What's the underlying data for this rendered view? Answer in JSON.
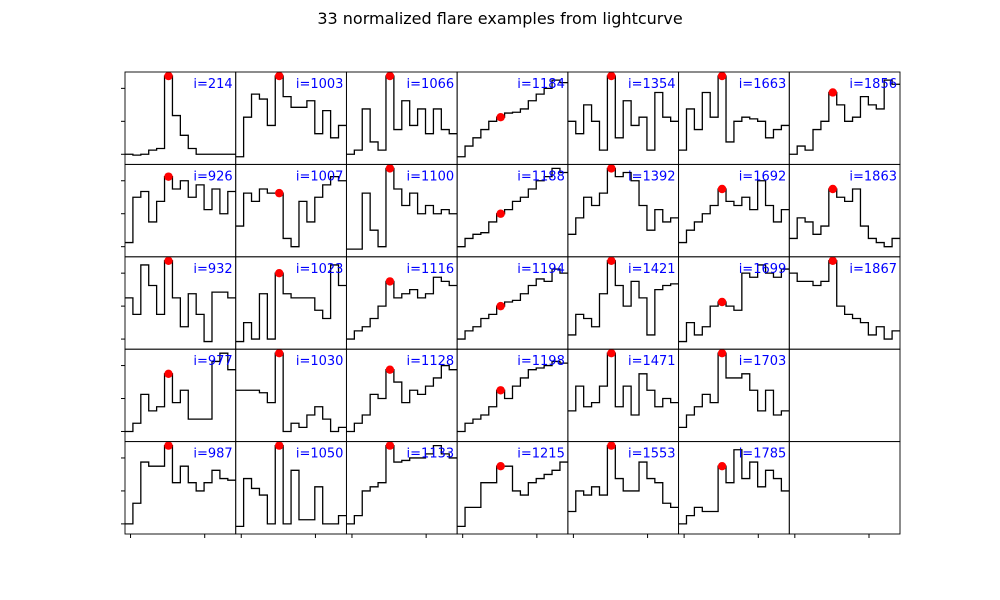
{
  "figure": {
    "title": "33 normalized flare examples from lightcurve",
    "grid": {
      "rows": 5,
      "cols": 7
    },
    "colors": {
      "line": "#000000",
      "marker": "#ff0000",
      "label": "#0000ff"
    }
  },
  "chart_data": {
    "type": "line",
    "drawstyle": "steps-mid",
    "xlim": [
      0,
      14
    ],
    "ylim": [
      0,
      1
    ],
    "grid": false,
    "legend": false,
    "panels": [
      {
        "label": "i=214",
        "peak_index": 5,
        "y": [
          0.05,
          0.04,
          0.05,
          0.1,
          0.12,
          1.0,
          0.52,
          0.28,
          0.12,
          0.05,
          0.05,
          0.05,
          0.05,
          0.05
        ]
      },
      {
        "label": "i=926",
        "peak_index": 5,
        "y": [
          0.1,
          0.65,
          0.72,
          0.35,
          0.6,
          0.9,
          0.75,
          0.85,
          0.65,
          0.8,
          0.5,
          0.75,
          0.45,
          0.72
        ]
      },
      {
        "label": "i=932",
        "peak_index": 5,
        "y": [
          0.55,
          0.35,
          0.95,
          0.7,
          0.35,
          1.0,
          0.55,
          0.2,
          0.6,
          0.35,
          0.02,
          0.62,
          0.62,
          0.55
        ]
      },
      {
        "label": "i=977",
        "peak_index": 5,
        "y": [
          0.05,
          0.15,
          0.5,
          0.3,
          0.35,
          0.75,
          0.4,
          0.55,
          0.2,
          0.2,
          0.2,
          0.9,
          1.0,
          0.8
        ]
      },
      {
        "label": "i=987",
        "peak_index": 5,
        "y": [
          0.05,
          0.3,
          0.8,
          0.75,
          0.75,
          1.0,
          0.55,
          0.75,
          0.55,
          0.45,
          0.55,
          0.7,
          0.6,
          0.58
        ]
      },
      {
        "label": "i=1003",
        "peak_index": 5,
        "y": [
          0.02,
          0.5,
          0.78,
          0.72,
          0.4,
          1.0,
          0.75,
          0.62,
          0.62,
          0.7,
          0.3,
          0.58,
          0.25,
          0.4
        ]
      },
      {
        "label": "i=1007",
        "peak_index": 5,
        "y": [
          0.3,
          0.7,
          0.6,
          0.75,
          0.7,
          0.7,
          0.15,
          0.05,
          0.6,
          0.35,
          0.65,
          0.8,
          0.9,
          0.85
        ]
      },
      {
        "label": "i=1023",
        "peak_index": 5,
        "y": [
          0.02,
          0.25,
          0.05,
          0.6,
          0.05,
          0.85,
          0.6,
          0.55,
          0.55,
          0.55,
          0.4,
          0.3,
          0.95,
          0.7
        ]
      },
      {
        "label": "i=1030",
        "peak_index": 5,
        "y": [
          0.55,
          0.55,
          0.55,
          0.52,
          0.4,
          1.0,
          0.05,
          0.15,
          0.1,
          0.25,
          0.35,
          0.2,
          0.05,
          0.1
        ]
      },
      {
        "label": "i=1050",
        "peak_index": 5,
        "y": [
          0.02,
          0.6,
          0.48,
          0.4,
          0.05,
          1.0,
          0.05,
          0.7,
          0.1,
          0.1,
          0.5,
          0.05,
          0.05,
          0.15
        ]
      },
      {
        "label": "i=1066",
        "peak_index": 5,
        "y": [
          0.05,
          0.1,
          0.6,
          0.2,
          0.1,
          1.0,
          0.35,
          0.7,
          0.4,
          0.6,
          0.3,
          0.6,
          0.35,
          0.3
        ]
      },
      {
        "label": "i=1100",
        "peak_index": 5,
        "y": [
          0.02,
          0.02,
          0.7,
          0.25,
          0.05,
          1.0,
          0.75,
          0.55,
          0.7,
          0.45,
          0.55,
          0.45,
          0.5,
          0.45
        ]
      },
      {
        "label": "i=1116",
        "peak_index": 5,
        "y": [
          0.05,
          0.15,
          0.2,
          0.3,
          0.45,
          0.75,
          0.55,
          0.6,
          0.65,
          0.55,
          0.6,
          0.8,
          0.75,
          0.7
        ]
      },
      {
        "label": "i=1128",
        "peak_index": 5,
        "y": [
          0.05,
          0.15,
          0.25,
          0.5,
          0.45,
          0.8,
          0.65,
          0.4,
          0.55,
          0.5,
          0.6,
          0.7,
          0.85,
          0.8
        ]
      },
      {
        "label": "i=1133",
        "peak_index": 5,
        "y": [
          0.05,
          0.15,
          0.45,
          0.5,
          0.55,
          1.0,
          0.8,
          0.82,
          0.85,
          0.85,
          0.9,
          1.0,
          0.9,
          0.85
        ]
      },
      {
        "label": "i=1184",
        "peak_index": 5,
        "y": [
          0.02,
          0.15,
          0.25,
          0.35,
          0.45,
          0.5,
          0.55,
          0.56,
          0.6,
          0.7,
          0.78,
          0.85,
          0.95,
          0.92
        ]
      },
      {
        "label": "i=1188",
        "peak_index": 5,
        "y": [
          0.05,
          0.15,
          0.2,
          0.22,
          0.35,
          0.45,
          0.5,
          0.6,
          0.65,
          0.75,
          0.85,
          0.9,
          1.0,
          0.95
        ]
      },
      {
        "label": "i=1194",
        "peak_index": 5,
        "y": [
          0.05,
          0.15,
          0.2,
          0.3,
          0.35,
          0.45,
          0.5,
          0.52,
          0.6,
          0.7,
          0.78,
          0.75,
          0.9,
          0.85
        ]
      },
      {
        "label": "i=1198",
        "peak_index": 5,
        "y": [
          0.05,
          0.15,
          0.2,
          0.25,
          0.35,
          0.55,
          0.45,
          0.6,
          0.7,
          0.8,
          0.82,
          0.85,
          0.9,
          0.88
        ]
      },
      {
        "label": "i=1215",
        "peak_index": 5,
        "y": [
          0.02,
          0.25,
          0.25,
          0.55,
          0.55,
          0.75,
          0.75,
          0.45,
          0.4,
          0.55,
          0.6,
          0.65,
          0.7,
          0.8
        ]
      },
      {
        "label": "i=1354",
        "peak_index": 5,
        "y": [
          0.45,
          0.3,
          0.65,
          0.45,
          0.1,
          1.0,
          0.25,
          0.7,
          0.4,
          0.5,
          0.1,
          0.8,
          0.5,
          0.45
        ]
      },
      {
        "label": "i=1392",
        "peak_index": 5,
        "y": [
          0.2,
          0.4,
          0.65,
          0.55,
          0.7,
          1.0,
          0.9,
          0.95,
          0.85,
          0.55,
          0.25,
          0.5,
          0.35,
          0.4
        ]
      },
      {
        "label": "i=1421",
        "peak_index": 5,
        "y": [
          0.1,
          0.35,
          0.3,
          0.2,
          0.6,
          1.0,
          0.7,
          0.45,
          0.75,
          0.55,
          0.1,
          0.65,
          0.7,
          0.72
        ]
      },
      {
        "label": "i=1471",
        "peak_index": 5,
        "y": [
          0.3,
          0.6,
          0.35,
          0.4,
          0.6,
          1.0,
          0.35,
          0.6,
          0.25,
          0.75,
          0.55,
          0.35,
          0.45,
          0.4
        ]
      },
      {
        "label": "i=1553",
        "peak_index": 5,
        "y": [
          0.2,
          0.45,
          0.4,
          0.5,
          0.4,
          1.0,
          0.6,
          0.45,
          0.45,
          0.8,
          0.6,
          0.55,
          0.3,
          0.25
        ]
      },
      {
        "label": "i=1663",
        "peak_index": 5,
        "y": [
          0.1,
          0.6,
          0.35,
          0.8,
          0.5,
          1.0,
          0.2,
          0.45,
          0.5,
          0.48,
          0.45,
          0.25,
          0.35,
          0.4
        ]
      },
      {
        "label": "i=1692",
        "peak_index": 5,
        "y": [
          0.1,
          0.25,
          0.35,
          0.45,
          0.55,
          0.75,
          0.6,
          0.55,
          0.65,
          0.5,
          0.85,
          0.55,
          0.35,
          0.5
        ]
      },
      {
        "label": "i=1699",
        "peak_index": 5,
        "y": [
          0.02,
          0.25,
          0.1,
          0.2,
          0.45,
          0.5,
          0.45,
          0.4,
          0.85,
          0.8,
          0.95,
          0.85,
          0.8,
          0.9
        ]
      },
      {
        "label": "i=1703",
        "peak_index": 5,
        "y": [
          0.1,
          0.25,
          0.35,
          0.5,
          0.4,
          1.0,
          0.7,
          0.7,
          0.75,
          0.55,
          0.3,
          0.55,
          0.25,
          0.3
        ]
      },
      {
        "label": "i=1785",
        "peak_index": 5,
        "y": [
          0.05,
          0.15,
          0.25,
          0.2,
          0.2,
          0.75,
          0.55,
          0.95,
          0.6,
          0.8,
          0.5,
          0.7,
          0.6,
          0.45
        ]
      },
      {
        "label": "i=1856",
        "peak_index": 5,
        "y": [
          0.05,
          0.15,
          0.1,
          0.35,
          0.45,
          0.8,
          0.65,
          0.45,
          0.5,
          0.75,
          0.65,
          0.6,
          0.95,
          0.9
        ]
      },
      {
        "label": "i=1863",
        "peak_index": 5,
        "y": [
          0.15,
          0.4,
          0.35,
          0.2,
          0.3,
          0.75,
          0.65,
          0.6,
          0.75,
          0.3,
          0.15,
          0.1,
          0.05,
          0.15
        ]
      },
      {
        "label": "i=1867",
        "peak_index": 5,
        "y": [
          0.85,
          0.75,
          0.75,
          0.7,
          0.75,
          1.0,
          0.45,
          0.35,
          0.3,
          0.25,
          0.1,
          0.2,
          0.05,
          0.15
        ]
      }
    ]
  }
}
